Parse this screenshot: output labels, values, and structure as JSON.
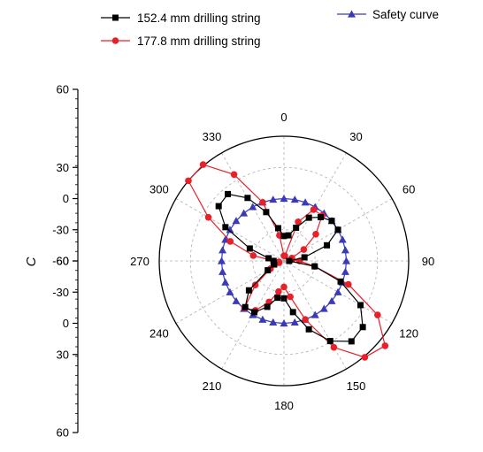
{
  "chart_data": {
    "type": "polar-line",
    "radial_axis": {
      "label": "C",
      "ticks": [
        "60",
        "30",
        "0",
        "-30",
        "-60",
        "-60",
        "-30",
        "0",
        "30",
        "60"
      ],
      "range": [
        -60,
        60
      ],
      "grid": true
    },
    "angular_axis": {
      "unit": "degrees",
      "zero_at": "top",
      "direction": "clockwise",
      "ticks": [
        "0",
        "30",
        "60",
        "90",
        "120",
        "150",
        "180",
        "210",
        "240",
        "270",
        "300",
        "330"
      ],
      "grid": true
    },
    "legend": {
      "placement": "top",
      "entries": [
        "152.4 mm drilling string",
        "177.8 mm  drilling string",
        "Safety curve"
      ]
    },
    "series": [
      {
        "name": "152.4 mm drilling string",
        "color": "#000000",
        "marker": "square",
        "points": [
          {
            "angle": 0,
            "value": -36
          },
          {
            "angle": 10,
            "value": -35
          },
          {
            "angle": 20,
            "value": -26
          },
          {
            "angle": 30,
            "value": -12
          },
          {
            "angle": 40,
            "value": -5
          },
          {
            "angle": 50,
            "value": 0
          },
          {
            "angle": 60,
            "value": 0
          },
          {
            "angle": 70,
            "value": -16
          },
          {
            "angle": 80,
            "value": -40
          },
          {
            "angle": 90,
            "value": -55
          },
          {
            "angle": 100,
            "value": -30
          },
          {
            "angle": 110,
            "value": -2
          },
          {
            "angle": 120,
            "value": 25
          },
          {
            "angle": 130,
            "value": 39
          },
          {
            "angle": 140,
            "value": 41
          },
          {
            "angle": 150,
            "value": 29
          },
          {
            "angle": 160,
            "value": 10
          },
          {
            "angle": 170,
            "value": -10
          },
          {
            "angle": 180,
            "value": -24
          },
          {
            "angle": 190,
            "value": -24
          },
          {
            "angle": 200,
            "value": -13
          },
          {
            "angle": 210,
            "value": -3
          },
          {
            "angle": 220,
            "value": -2
          },
          {
            "angle": 230,
            "value": -16
          },
          {
            "angle": 240,
            "value": -42
          },
          {
            "angle": 250,
            "value": -50
          },
          {
            "angle": 260,
            "value": -50
          },
          {
            "angle": 270,
            "value": -50
          },
          {
            "angle": 280,
            "value": -45
          },
          {
            "angle": 290,
            "value": -25
          },
          {
            "angle": 300,
            "value": 5
          },
          {
            "angle": 310,
            "value": 22
          },
          {
            "angle": 320,
            "value": 24
          },
          {
            "angle": 330,
            "value": 10
          },
          {
            "angle": 340,
            "value": -10
          },
          {
            "angle": 350,
            "value": -28
          }
        ]
      },
      {
        "name": "177.8 mm  drilling string",
        "color": "#e8202a",
        "marker": "circle",
        "points": [
          {
            "angle": 0,
            "value": -55
          },
          {
            "angle": 10,
            "value": -55
          },
          {
            "angle": 20,
            "value": -20
          },
          {
            "angle": 30,
            "value": -3
          },
          {
            "angle": 40,
            "value": -3
          },
          {
            "angle": 50,
            "value": -20
          },
          {
            "angle": 60,
            "value": -38
          },
          {
            "angle": 70,
            "value": -52
          },
          {
            "angle": 80,
            "value": -52
          },
          {
            "angle": 90,
            "value": -45
          },
          {
            "angle": 100,
            "value": -30
          },
          {
            "angle": 110,
            "value": 6
          },
          {
            "angle": 120,
            "value": 44
          },
          {
            "angle": 130,
            "value": 67
          },
          {
            "angle": 140,
            "value": 61
          },
          {
            "angle": 150,
            "value": 36
          },
          {
            "angle": 160,
            "value": 0
          },
          {
            "angle": 170,
            "value": -25
          },
          {
            "angle": 180,
            "value": -35
          },
          {
            "angle": 190,
            "value": -30
          },
          {
            "angle": 200,
            "value": -18
          },
          {
            "angle": 210,
            "value": -5
          },
          {
            "angle": 220,
            "value": -1
          },
          {
            "angle": 230,
            "value": -24
          },
          {
            "angle": 240,
            "value": -45
          },
          {
            "angle": 250,
            "value": -55
          },
          {
            "angle": 260,
            "value": -55
          },
          {
            "angle": 270,
            "value": -50
          },
          {
            "angle": 280,
            "value": -30
          },
          {
            "angle": 290,
            "value": -5
          },
          {
            "angle": 300,
            "value": 24
          },
          {
            "angle": 310,
            "value": 60
          },
          {
            "angle": 320,
            "value": 61
          },
          {
            "angle": 330,
            "value": 36
          },
          {
            "angle": 340,
            "value": 0
          },
          {
            "angle": 350,
            "value": -35
          }
        ]
      },
      {
        "name": "Safety curve",
        "color": "#3a3ab8",
        "marker": "triangle",
        "points": [
          {
            "angle": 0,
            "value": 0
          },
          {
            "angle": 10,
            "value": 0
          },
          {
            "angle": 20,
            "value": 0
          },
          {
            "angle": 30,
            "value": 0
          },
          {
            "angle": 40,
            "value": 0
          },
          {
            "angle": 50,
            "value": 0
          },
          {
            "angle": 60,
            "value": 0
          },
          {
            "angle": 70,
            "value": 0
          },
          {
            "angle": 80,
            "value": 0
          },
          {
            "angle": 90,
            "value": 0
          },
          {
            "angle": 100,
            "value": 0
          },
          {
            "angle": 110,
            "value": 0
          },
          {
            "angle": 120,
            "value": 0
          },
          {
            "angle": 130,
            "value": 0
          },
          {
            "angle": 140,
            "value": 0
          },
          {
            "angle": 150,
            "value": 0
          },
          {
            "angle": 160,
            "value": 0
          },
          {
            "angle": 170,
            "value": 0
          },
          {
            "angle": 180,
            "value": 0
          },
          {
            "angle": 190,
            "value": 0
          },
          {
            "angle": 200,
            "value": 0
          },
          {
            "angle": 210,
            "value": 0
          },
          {
            "angle": 220,
            "value": 0
          },
          {
            "angle": 230,
            "value": 0
          },
          {
            "angle": 240,
            "value": 0
          },
          {
            "angle": 250,
            "value": 0
          },
          {
            "angle": 260,
            "value": 0
          },
          {
            "angle": 270,
            "value": 0
          },
          {
            "angle": 280,
            "value": 0
          },
          {
            "angle": 290,
            "value": 0
          },
          {
            "angle": 300,
            "value": 0
          },
          {
            "angle": 310,
            "value": 0
          },
          {
            "angle": 320,
            "value": 0
          },
          {
            "angle": 330,
            "value": 0
          },
          {
            "angle": 340,
            "value": 0
          },
          {
            "angle": 350,
            "value": 0
          }
        ]
      }
    ]
  }
}
